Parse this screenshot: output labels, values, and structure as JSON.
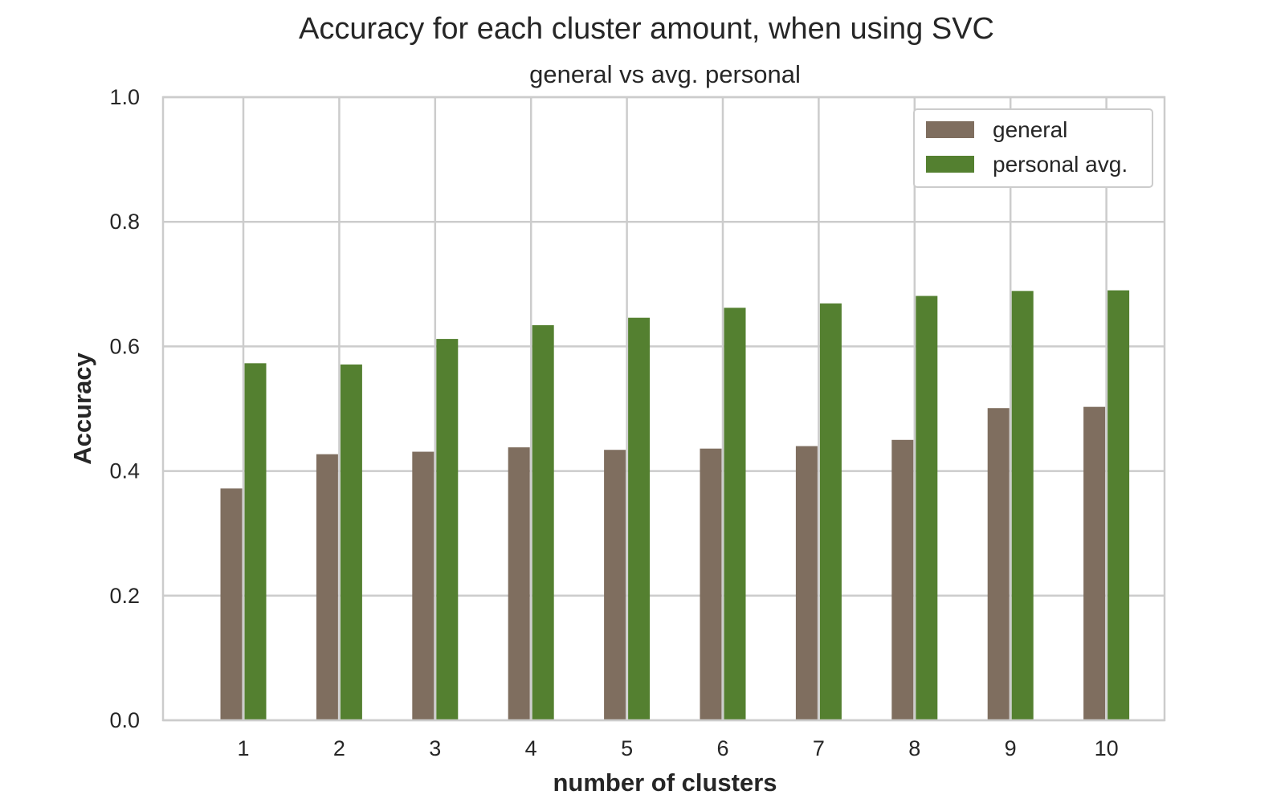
{
  "chart_data": {
    "type": "bar",
    "title": "Accuracy for each cluster amount, when using SVC",
    "subtitle": "general vs avg. personal",
    "xlabel": "number of clusters",
    "ylabel": "Accuracy",
    "categories": [
      "1",
      "2",
      "3",
      "4",
      "5",
      "6",
      "7",
      "8",
      "9",
      "10"
    ],
    "series": [
      {
        "name": "general",
        "color": "#7f6e5f",
        "values": [
          0.372,
          0.427,
          0.431,
          0.438,
          0.434,
          0.436,
          0.44,
          0.45,
          0.501,
          0.503
        ]
      },
      {
        "name": "personal avg.",
        "color": "#548030",
        "values": [
          0.573,
          0.571,
          0.612,
          0.634,
          0.646,
          0.662,
          0.669,
          0.681,
          0.689,
          0.69
        ]
      }
    ],
    "ylim": [
      0,
      1.0
    ],
    "yticks": [
      "0.0",
      "0.2",
      "0.4",
      "0.6",
      "0.8",
      "1.0"
    ],
    "grid": true,
    "legend_position": "top-right"
  }
}
